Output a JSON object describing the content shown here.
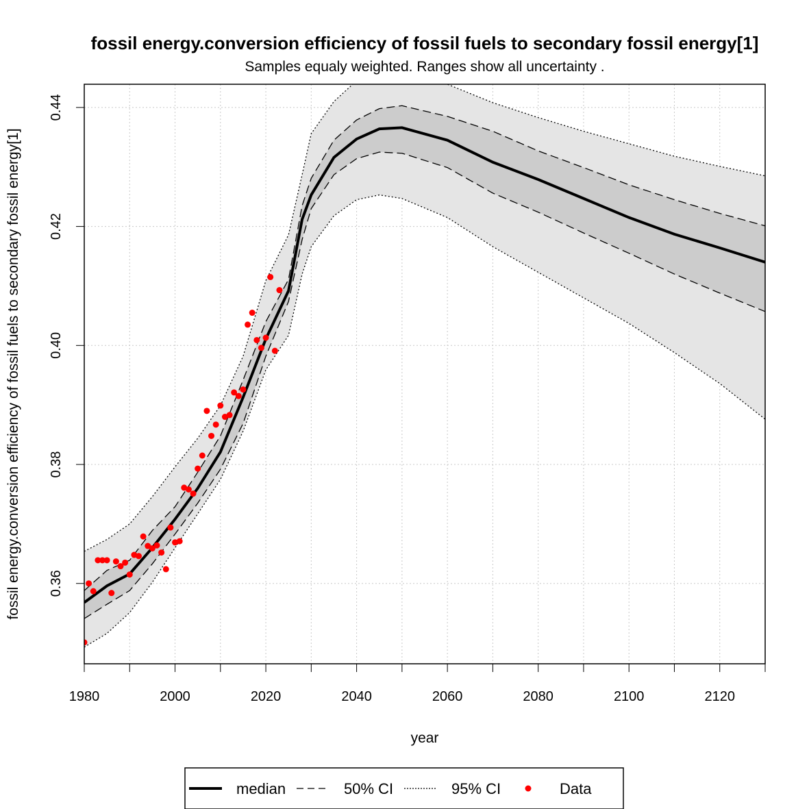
{
  "chart_data": {
    "type": "line",
    "title": "fossil energy.conversion efficiency of fossil fuels to secondary fossil energy[1]",
    "subtitle": "Samples equaly weighted. Ranges show  all uncertainty .",
    "x_label": "year",
    "y_label": "fossil energy.conversion efficiency of fossil fuels to secondary fossil energy[1]",
    "xlim": [
      1980,
      2130
    ],
    "ylim": [
      0.3465,
      0.4439
    ],
    "xticks": [
      1980,
      2000,
      2020,
      2040,
      2060,
      2080,
      2100,
      2120
    ],
    "xminor_ticks": [
      1990,
      2010,
      2030,
      2050,
      2070,
      2090,
      2110,
      2130
    ],
    "yticks": [
      0.36,
      0.38,
      {
        "value": 0.4,
        "label": "0.40"
      },
      0.42,
      0.44
    ],
    "grid": true,
    "x": [
      1980,
      1985,
      1990,
      1995,
      2000,
      2005,
      2010,
      2015,
      2020,
      2025,
      2028,
      2030,
      2035,
      2040,
      2045,
      2050,
      2060,
      2070,
      2080,
      2090,
      2100,
      2110,
      2120,
      2130
    ],
    "series": [
      {
        "name": "median",
        "color": "#000000",
        "values": [
          0.3568,
          0.3596,
          0.3616,
          0.366,
          0.3708,
          0.376,
          0.3821,
          0.3913,
          0.4011,
          0.4092,
          0.4212,
          0.4253,
          0.4316,
          0.4347,
          0.4364,
          0.4366,
          0.4345,
          0.4308,
          0.4279,
          0.4247,
          0.4215,
          0.4187,
          0.4164,
          0.414
        ]
      },
      {
        "name": "50% CI",
        "color": "#cccccc",
        "upper": [
          0.3588,
          0.3622,
          0.3639,
          0.3689,
          0.3729,
          0.3787,
          0.3848,
          0.3942,
          0.404,
          0.4111,
          0.4235,
          0.4281,
          0.4345,
          0.4379,
          0.4398,
          0.4403,
          0.4385,
          0.436,
          0.4327,
          0.4299,
          0.427,
          0.4245,
          0.4222,
          0.4201
        ],
        "lower": [
          0.3541,
          0.3565,
          0.3588,
          0.3633,
          0.3683,
          0.3735,
          0.3792,
          0.3869,
          0.3982,
          0.4074,
          0.4178,
          0.423,
          0.4287,
          0.4314,
          0.4325,
          0.4323,
          0.4299,
          0.4256,
          0.4224,
          0.4189,
          0.4155,
          0.412,
          0.4088,
          0.4057
        ]
      },
      {
        "name": "95% CI",
        "color": "#e5e5e5",
        "upper": [
          0.3654,
          0.3674,
          0.37,
          0.3746,
          0.3796,
          0.3844,
          0.3899,
          0.3982,
          0.4109,
          0.4186,
          0.4287,
          0.4356,
          0.441,
          0.4445,
          0.4466,
          0.4466,
          0.4439,
          0.4408,
          0.4383,
          0.436,
          0.4339,
          0.4318,
          0.4301,
          0.4285
        ],
        "lower": [
          0.3493,
          0.3516,
          0.3551,
          0.3602,
          0.366,
          0.3717,
          0.3775,
          0.3856,
          0.3959,
          0.4017,
          0.412,
          0.4166,
          0.4218,
          0.4245,
          0.4253,
          0.4247,
          0.4215,
          0.4166,
          0.4123,
          0.408,
          0.4037,
          0.3988,
          0.3936,
          0.3876
        ]
      }
    ],
    "points": {
      "name": "Data",
      "color": "#ff0000",
      "x": [
        1980,
        1981,
        1982,
        1983,
        1984,
        1985,
        1986,
        1987,
        1988,
        1989,
        1990,
        1991,
        1992,
        1993,
        1994,
        1995,
        1996,
        1997,
        1998,
        1999,
        2000,
        2001,
        2002,
        2003,
        2004,
        2005,
        2006,
        2007,
        2008,
        2009,
        2010,
        2011,
        2012,
        2013,
        2014,
        2015,
        2016,
        2017,
        2018,
        2019,
        2020,
        2021,
        2022,
        2023
      ],
      "values": [
        0.3501,
        0.36,
        0.3587,
        0.3639,
        0.3639,
        0.3639,
        0.3584,
        0.3637,
        0.3629,
        0.3635,
        0.3615,
        0.3648,
        0.3646,
        0.3679,
        0.3663,
        0.3659,
        0.3664,
        0.3652,
        0.3624,
        0.3694,
        0.3669,
        0.3671,
        0.3761,
        0.3758,
        0.3751,
        0.3793,
        0.3815,
        0.389,
        0.3848,
        0.3867,
        0.3899,
        0.388,
        0.3883,
        0.3921,
        0.3915,
        0.3926,
        0.4035,
        0.4055,
        0.4009,
        0.3996,
        0.4013,
        0.4115,
        0.3991,
        0.4093
      ]
    },
    "legend": "bottom"
  }
}
